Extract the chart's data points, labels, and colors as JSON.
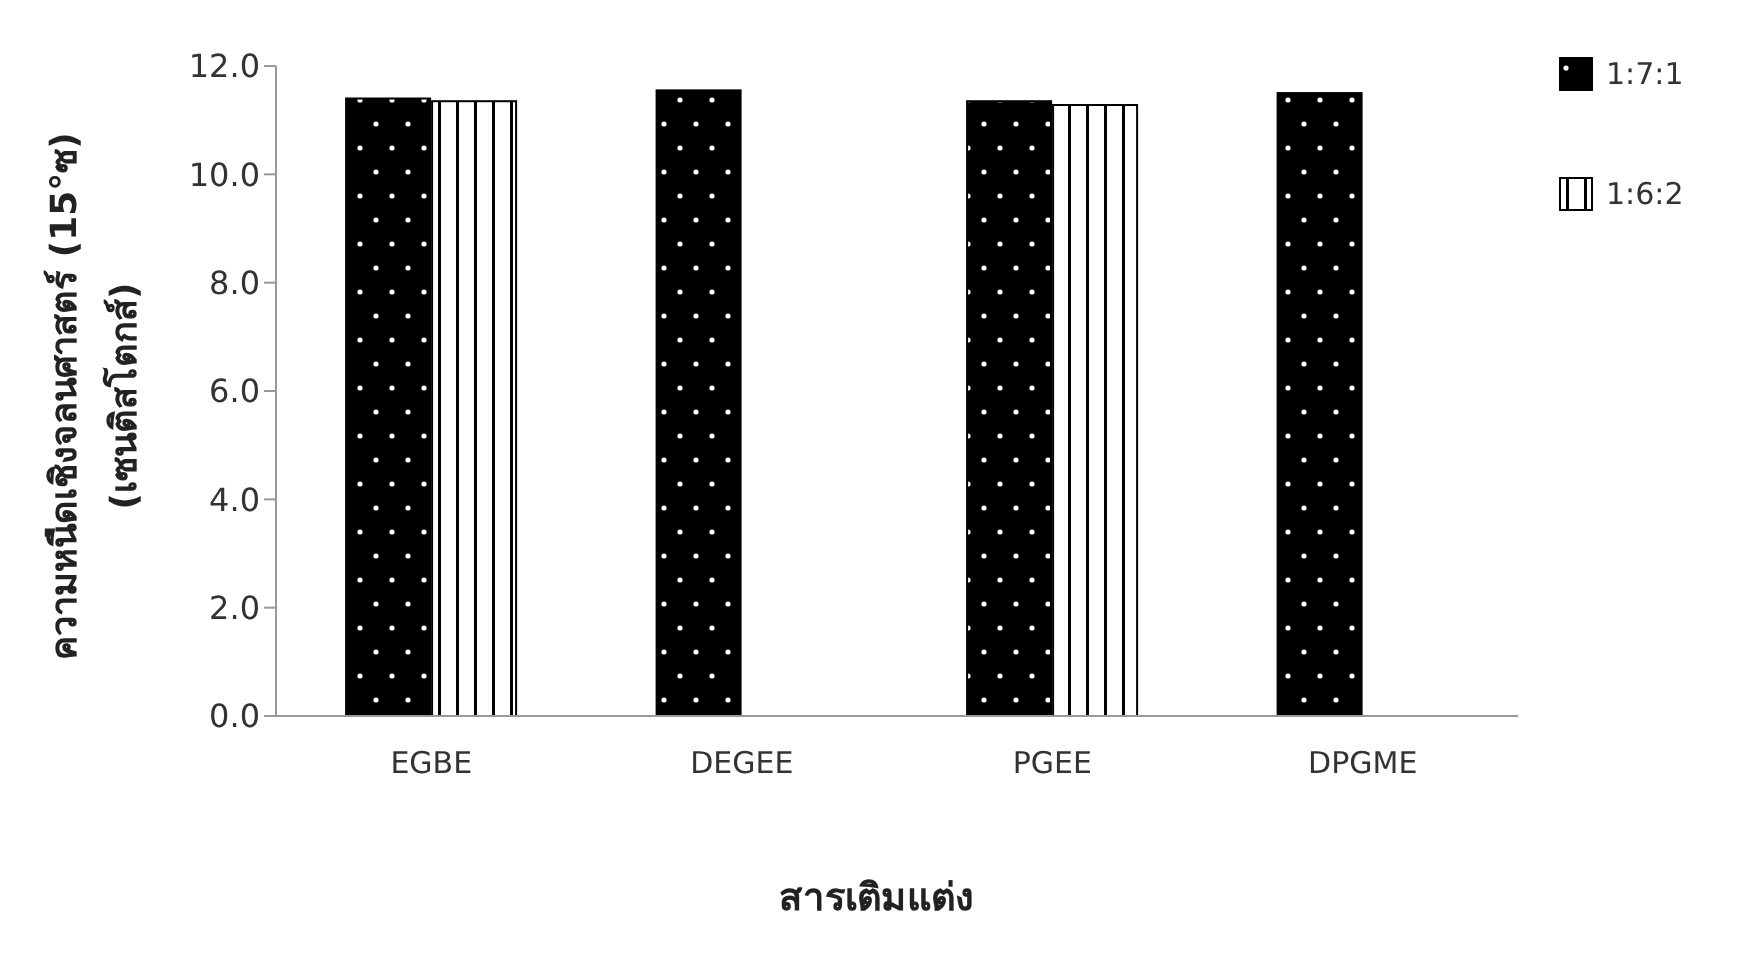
{
  "chart_data": {
    "type": "bar",
    "xlabel": "สารเติมแต่ง",
    "ylabel": "ความหนืดเชิงจลนศาสตร์ (15°ซ)\n(เซนติสโตกส์)",
    "categories": [
      "EGBE",
      "DEGEE",
      "PGEE",
      "DPGME"
    ],
    "series": [
      {
        "name": "1:7:1",
        "color": "#000000",
        "values": [
          11.4,
          11.55,
          11.35,
          11.5
        ]
      },
      {
        "name": "1:6:2",
        "color": "#ffffff",
        "values": [
          11.35,
          null,
          11.28,
          null
        ]
      }
    ],
    "ylim": [
      0,
      12
    ],
    "yticks": [
      {
        "value": 0,
        "label": "0.0"
      },
      {
        "value": 2,
        "label": "2.0"
      },
      {
        "value": 4,
        "label": "4.0"
      },
      {
        "value": 6,
        "label": "6.0"
      },
      {
        "value": 8,
        "label": "8.0"
      },
      {
        "value": 10,
        "label": "10.0"
      },
      {
        "value": 12,
        "label": "12.0"
      }
    ],
    "grid": false,
    "legend": "top right"
  }
}
